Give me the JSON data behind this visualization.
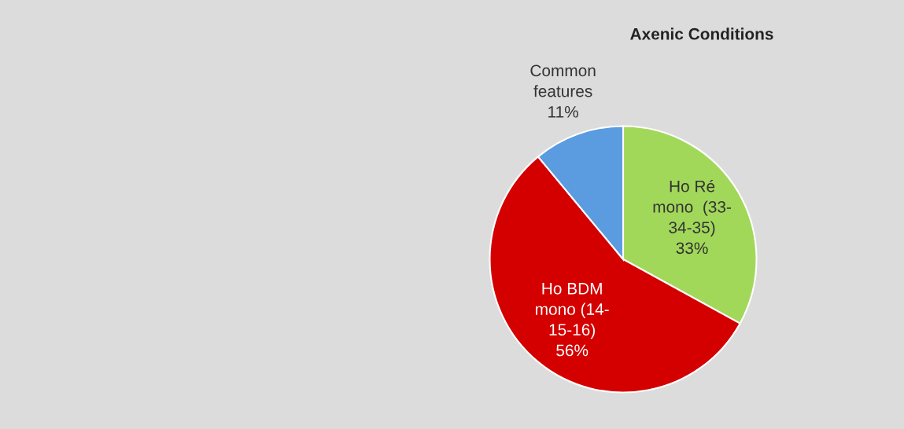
{
  "chart_data": {
    "type": "pie",
    "title": "Axenic Conditions",
    "categories": [
      "Ho Ré\nmono  (33-\n34-35)",
      "Ho BDM\nmono (14-\n15-16)",
      "Common\nfeatures"
    ],
    "values": [
      33,
      56,
      11
    ],
    "colors": [
      "#a2d85a",
      "#d40000",
      "#5b9be0"
    ],
    "value_labels": [
      "33%",
      "56%",
      "11%"
    ],
    "legend": false
  }
}
